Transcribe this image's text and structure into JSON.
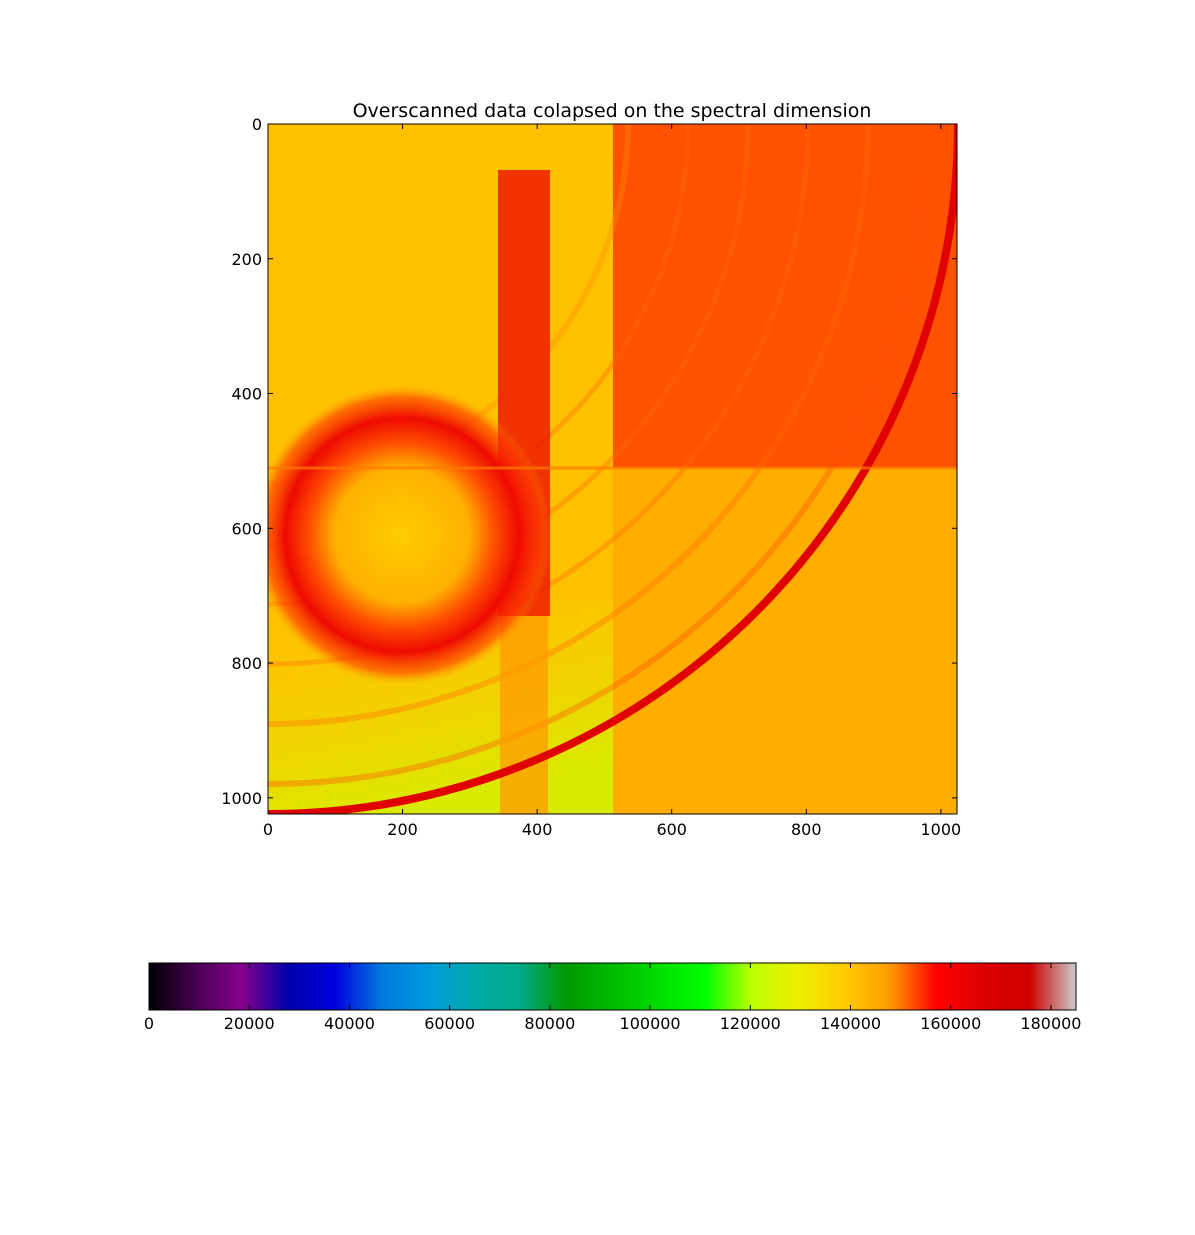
{
  "chart_data": [
    {
      "type": "heatmap",
      "title": "Overscanned data colapsed on the spectral dimension",
      "xlabel": "",
      "ylabel": "",
      "xlim": [
        0,
        1024
      ],
      "ylim": [
        1024,
        0
      ],
      "y_inverted": true,
      "xticks": [
        0,
        200,
        400,
        600,
        800,
        1000
      ],
      "yticks": [
        0,
        200,
        400,
        600,
        800,
        1000
      ],
      "grid": false,
      "colormap": "nipy_spectral",
      "colorbar_orientation": "horizontal",
      "background_level_approx": 140000,
      "features": [
        {
          "kind": "quadrant",
          "x": [
            512,
            1024
          ],
          "y": [
            0,
            512
          ],
          "value_approx": 155000
        },
        {
          "kind": "quadrant",
          "x": [
            512,
            1024
          ],
          "y": [
            512,
            1024
          ],
          "value_approx": 143000
        },
        {
          "kind": "quadrant",
          "x": [
            0,
            512
          ],
          "y": [
            0,
            512
          ],
          "value_approx": 138000
        },
        {
          "kind": "quadrant",
          "x": [
            0,
            512
          ],
          "y": [
            512,
            1024
          ],
          "value_approx": 136000
        },
        {
          "kind": "ring",
          "center": [
            200,
            610
          ],
          "radius_approx": 185,
          "value_approx": 162000
        },
        {
          "kind": "vertical_band",
          "x": [
            345,
            420
          ],
          "y": [
            70,
            1024
          ],
          "value_approx": 157000
        },
        {
          "kind": "arc",
          "center": [
            0,
            0
          ],
          "radius_approx": 1250,
          "value_approx": 165000
        }
      ]
    },
    {
      "type": "colorbar",
      "vmin": 0,
      "vmax": 185000,
      "ticks": [
        0,
        20000,
        40000,
        60000,
        80000,
        100000,
        120000,
        140000,
        160000,
        180000
      ],
      "stops": [
        {
          "v": 0.0,
          "c": "#000000"
        },
        {
          "v": 0.05,
          "c": "#470051"
        },
        {
          "v": 0.1,
          "c": "#86008c"
        },
        {
          "v": 0.15,
          "c": "#0000aa"
        },
        {
          "v": 0.2,
          "c": "#0000dd"
        },
        {
          "v": 0.25,
          "c": "#0077dd"
        },
        {
          "v": 0.3,
          "c": "#0099dd"
        },
        {
          "v": 0.35,
          "c": "#00aaaa"
        },
        {
          "v": 0.4,
          "c": "#00aa88"
        },
        {
          "v": 0.45,
          "c": "#009900"
        },
        {
          "v": 0.5,
          "c": "#00bb00"
        },
        {
          "v": 0.55,
          "c": "#00dd00"
        },
        {
          "v": 0.6,
          "c": "#00ff00"
        },
        {
          "v": 0.65,
          "c": "#bbff00"
        },
        {
          "v": 0.7,
          "c": "#eeee00"
        },
        {
          "v": 0.75,
          "c": "#ffcc00"
        },
        {
          "v": 0.8,
          "c": "#ff9900"
        },
        {
          "v": 0.85,
          "c": "#ff0000"
        },
        {
          "v": 0.9,
          "c": "#dd0000"
        },
        {
          "v": 0.95,
          "c": "#cc0000"
        },
        {
          "v": 1.0,
          "c": "#cccccc"
        }
      ]
    }
  ]
}
